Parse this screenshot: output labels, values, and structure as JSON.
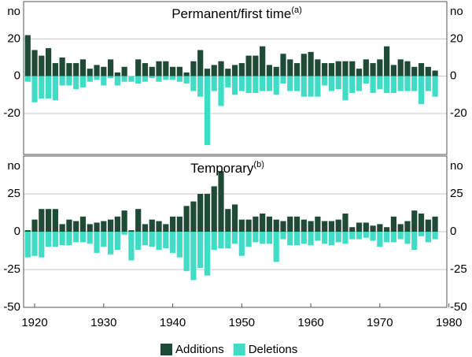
{
  "x_axis": {
    "x": [
      1919,
      1920,
      1921,
      1922,
      1923,
      1924,
      1925,
      1926,
      1927,
      1928,
      1929,
      1930,
      1931,
      1932,
      1933,
      1934,
      1935,
      1936,
      1937,
      1938,
      1939,
      1940,
      1941,
      1942,
      1943,
      1944,
      1945,
      1946,
      1947,
      1948,
      1949,
      1950,
      1951,
      1952,
      1953,
      1954,
      1955,
      1956,
      1957,
      1958,
      1959,
      1960,
      1961,
      1962,
      1963,
      1964,
      1965,
      1966,
      1967,
      1968,
      1969,
      1970,
      1971,
      1972,
      1973,
      1974,
      1975,
      1976,
      1977,
      1978
    ],
    "xlim": [
      1918.4,
      1979.7
    ],
    "xticks": [
      1920,
      1930,
      1940,
      1950,
      1960,
      1970,
      1980
    ]
  },
  "legend": [
    {
      "name": "Additions",
      "color": "#1f4a36"
    },
    {
      "name": "Deletions",
      "color": "#40dcc6"
    }
  ],
  "chart_data": [
    {
      "type": "bar",
      "title": "Permanent/first time",
      "title_note": "(a)",
      "ylabel": "no",
      "ylim": [
        -42,
        40
      ],
      "yticks": [
        -20,
        0,
        20
      ],
      "grid": true,
      "series": [
        {
          "values": [
            22,
            14,
            11,
            15,
            7,
            10,
            7,
            7,
            9,
            4,
            6,
            5,
            9,
            2,
            5,
            0,
            9,
            7,
            5,
            8,
            8,
            5,
            5,
            2,
            8,
            14,
            4,
            6,
            8,
            4,
            6,
            7,
            11,
            11,
            16,
            6,
            5,
            12,
            9,
            7,
            12,
            13,
            9,
            7,
            7,
            8,
            8,
            8,
            4,
            9,
            7,
            9,
            16,
            6,
            9,
            8,
            5,
            7,
            5,
            3
          ]
        },
        {
          "values": [
            -3,
            -14,
            -12,
            -12,
            -13,
            -5,
            -5,
            -7,
            -6,
            -3,
            -2,
            -5,
            -1,
            -5,
            -3,
            -3,
            -4,
            -3,
            -1,
            -3,
            -2,
            -2,
            -3,
            -4,
            -8,
            -11,
            -37,
            -8,
            -16,
            -6,
            -10,
            -8,
            -9,
            -9,
            -8,
            -8,
            -10,
            -4,
            -8,
            -8,
            -11,
            -11,
            -11,
            -5,
            -8,
            -7,
            -13,
            -9,
            -8,
            -4,
            -9,
            -7,
            -9,
            -9,
            -8,
            -8,
            -8,
            -15,
            -8,
            -11
          ]
        }
      ]
    },
    {
      "type": "bar",
      "title": "Temporary",
      "title_note": "(b)",
      "ylabel": "no",
      "ylim": [
        -50,
        50
      ],
      "yticks": [
        -50,
        -25,
        0,
        25
      ],
      "grid": true,
      "series": [
        {
          "values": [
            1,
            8,
            15,
            15,
            15,
            5,
            8,
            7,
            10,
            5,
            6,
            7,
            8,
            10,
            14,
            1,
            15,
            5,
            8,
            7,
            5,
            10,
            10,
            17,
            20,
            25,
            25,
            30,
            40,
            15,
            18,
            8,
            8,
            10,
            12,
            10,
            8,
            7,
            10,
            10,
            8,
            7,
            10,
            7,
            7,
            8,
            12,
            3,
            6,
            6,
            4,
            5,
            3,
            10,
            5,
            7,
            14,
            12,
            8,
            10
          ]
        },
        {
          "values": [
            -17,
            -16,
            -17,
            -10,
            -10,
            -9,
            -9,
            -7,
            -7,
            -8,
            -14,
            -10,
            -15,
            -12,
            -2,
            -19,
            -12,
            -9,
            -10,
            -12,
            -11,
            -14,
            -17,
            -26,
            -32,
            -24,
            -29,
            -12,
            -11,
            -11,
            -8,
            -16,
            -10,
            -7,
            -8,
            -8,
            -20,
            -5,
            -9,
            -9,
            -8,
            -9,
            -6,
            -8,
            -9,
            -7,
            -8,
            -5,
            -5,
            -4,
            -6,
            -10,
            -7,
            -7,
            -5,
            -8,
            -12,
            -3,
            -7,
            -5
          ]
        }
      ]
    }
  ]
}
